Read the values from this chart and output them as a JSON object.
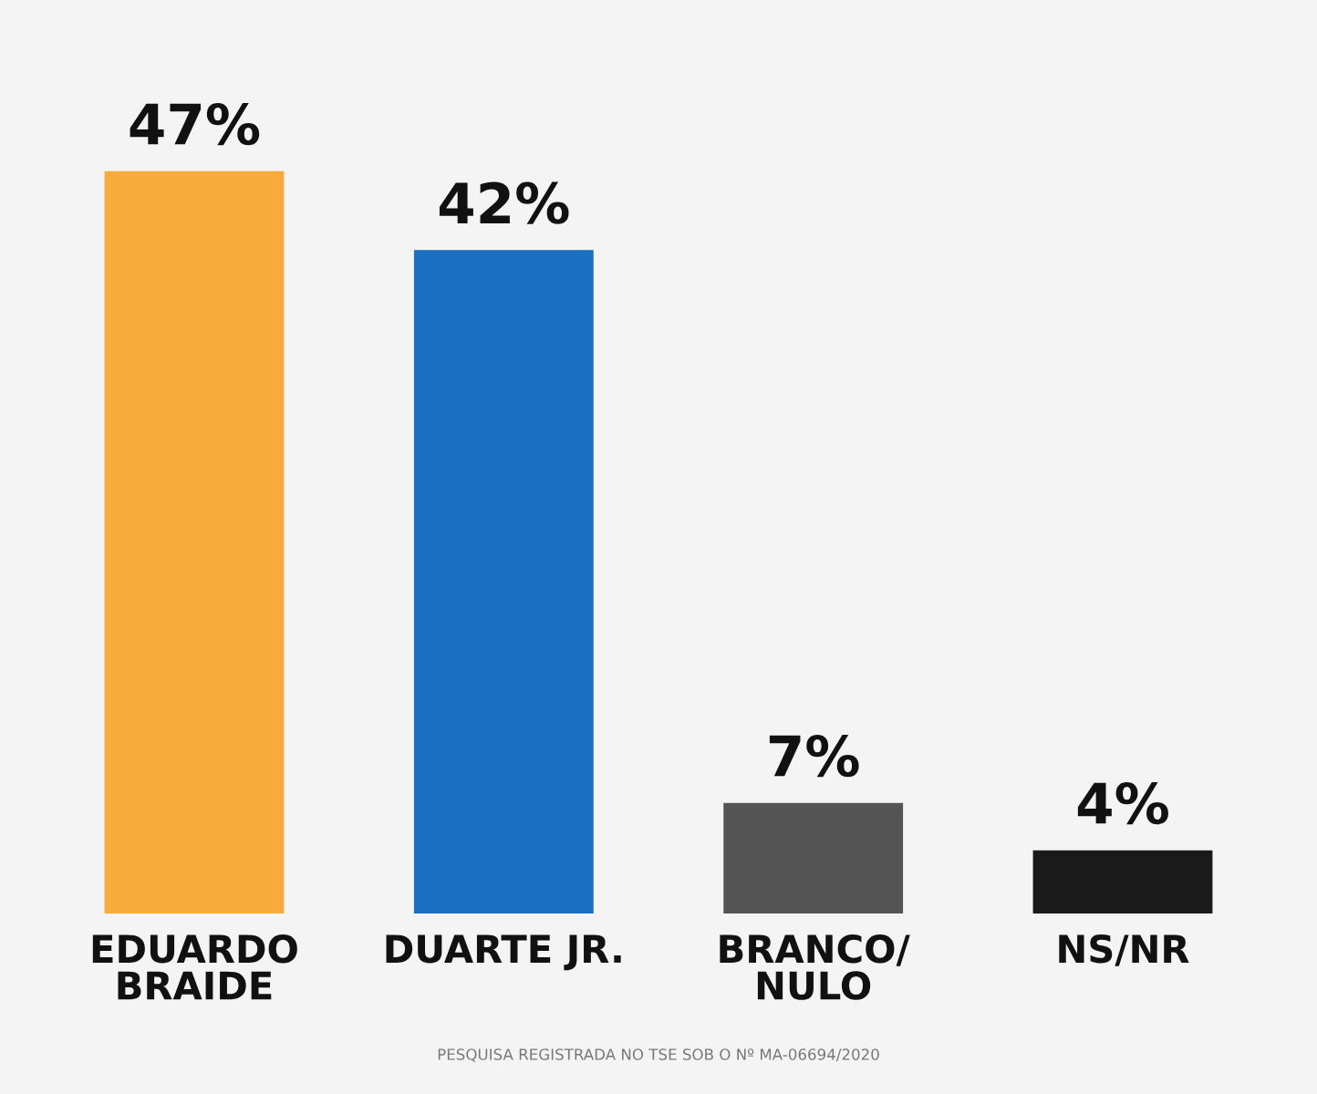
{
  "chart_data": {
    "type": "bar",
    "categories": [
      "EDUARDO\nBRAIDE",
      "DUARTE JR.",
      "BRANCO/\nNULO",
      "NS/NR"
    ],
    "values": [
      47,
      42,
      7,
      4
    ],
    "colors": [
      "#f6ab3b",
      "#1b6fc2",
      "#555555",
      "#1a1a1a"
    ],
    "value_labels": [
      "47%",
      "42%",
      "7%",
      "4%"
    ],
    "grid": false,
    "annotations": [
      "PESQUISA REGISTRADA NO TSE SOB O Nº MA-06694/2020"
    ]
  }
}
